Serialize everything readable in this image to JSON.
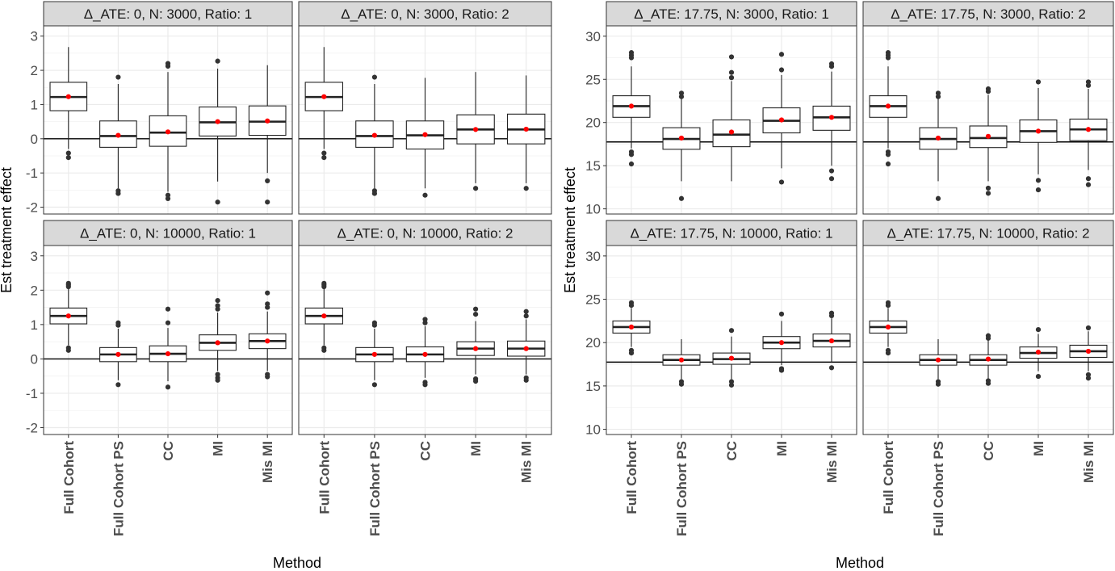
{
  "chart_data": [
    {
      "type": "box",
      "ylabel": "Est treatment effect",
      "xlabel": "Method",
      "categories": [
        "Full Cohort",
        "Full Cohort PS",
        "CC",
        "MI",
        "Mis MI"
      ],
      "ylim": [
        -2.2,
        3.3
      ],
      "yticks": [
        -2,
        -1,
        0,
        1,
        2,
        3
      ],
      "reference_line": 0,
      "grid": true,
      "panels": [
        {
          "strip": "Δ_ATE: 0, N: 3000, Ratio: 1",
          "boxes": [
            {
              "category": "Full Cohort",
              "whisker_low": -0.3,
              "q1": 0.82,
              "median": 1.22,
              "q3": 1.65,
              "whisker_high": 2.68,
              "mean": 1.23,
              "outliers": [
                -0.42,
                -0.55
              ]
            },
            {
              "category": "Full Cohort PS",
              "whisker_low": -1.45,
              "q1": -0.25,
              "median": 0.08,
              "q3": 0.52,
              "whisker_high": 1.6,
              "mean": 0.1,
              "outliers": [
                1.8,
                -1.52,
                -1.6
              ]
            },
            {
              "category": "CC",
              "whisker_low": -1.55,
              "q1": -0.22,
              "median": 0.18,
              "q3": 0.67,
              "whisker_high": 1.95,
              "mean": 0.2,
              "outliers": [
                2.2,
                2.12,
                -1.65,
                -1.75
              ]
            },
            {
              "category": "MI",
              "whisker_low": -1.25,
              "q1": 0.08,
              "median": 0.48,
              "q3": 0.93,
              "whisker_high": 2.05,
              "mean": 0.5,
              "outliers": [
                2.27,
                -1.85
              ]
            },
            {
              "category": "Mis MI",
              "whisker_low": -1.0,
              "q1": 0.1,
              "median": 0.5,
              "q3": 0.96,
              "whisker_high": 2.15,
              "mean": 0.52,
              "outliers": [
                -1.23,
                -1.85
              ]
            }
          ]
        },
        {
          "strip": "Δ_ATE: 0, N: 3000, Ratio: 2",
          "boxes": [
            {
              "category": "Full Cohort",
              "whisker_low": -0.3,
              "q1": 0.82,
              "median": 1.22,
              "q3": 1.65,
              "whisker_high": 2.68,
              "mean": 1.23,
              "outliers": [
                -0.42,
                -0.55
              ]
            },
            {
              "category": "Full Cohort PS",
              "whisker_low": -1.45,
              "q1": -0.25,
              "median": 0.08,
              "q3": 0.52,
              "whisker_high": 1.6,
              "mean": 0.1,
              "outliers": [
                1.8,
                -1.52,
                -1.6
              ]
            },
            {
              "category": "CC",
              "whisker_low": -1.45,
              "q1": -0.3,
              "median": 0.1,
              "q3": 0.52,
              "whisker_high": 1.78,
              "mean": 0.12,
              "outliers": [
                -1.65
              ]
            },
            {
              "category": "MI",
              "whisker_low": -1.3,
              "q1": -0.15,
              "median": 0.27,
              "q3": 0.7,
              "whisker_high": 1.95,
              "mean": 0.27,
              "outliers": [
                -1.45
              ]
            },
            {
              "category": "Mis MI",
              "whisker_low": -1.3,
              "q1": -0.15,
              "median": 0.27,
              "q3": 0.72,
              "whisker_high": 1.85,
              "mean": 0.28,
              "outliers": [
                -1.45
              ]
            }
          ]
        },
        {
          "strip": "Δ_ATE: 0, N: 10000, Ratio: 1",
          "boxes": [
            {
              "category": "Full Cohort",
              "whisker_low": 0.4,
              "q1": 1.02,
              "median": 1.25,
              "q3": 1.48,
              "whisker_high": 2.05,
              "mean": 1.25,
              "outliers": [
                2.2,
                2.15,
                2.1,
                0.32,
                0.25
              ]
            },
            {
              "category": "Full Cohort PS",
              "whisker_low": -0.62,
              "q1": -0.08,
              "median": 0.13,
              "q3": 0.33,
              "whisker_high": 0.88,
              "mean": 0.13,
              "outliers": [
                1.05,
                0.98,
                -0.75
              ]
            },
            {
              "category": "CC",
              "whisker_low": -0.65,
              "q1": -0.08,
              "median": 0.15,
              "q3": 0.38,
              "whisker_high": 0.9,
              "mean": 0.15,
              "outliers": [
                1.45,
                1.05,
                -0.82
              ]
            },
            {
              "category": "MI",
              "whisker_low": -0.35,
              "q1": 0.25,
              "median": 0.47,
              "q3": 0.7,
              "whisker_high": 1.35,
              "mean": 0.47,
              "outliers": [
                1.7,
                1.55,
                1.45,
                -0.45,
                -0.55,
                -0.62
              ]
            },
            {
              "category": "Mis MI",
              "whisker_low": -0.35,
              "q1": 0.3,
              "median": 0.52,
              "q3": 0.73,
              "whisker_high": 1.38,
              "mean": 0.52,
              "outliers": [
                1.92,
                1.6,
                1.5,
                -0.45,
                -0.52
              ]
            }
          ]
        },
        {
          "strip": "Δ_ATE: 0, N: 10000, Ratio: 2",
          "boxes": [
            {
              "category": "Full Cohort",
              "whisker_low": 0.4,
              "q1": 1.02,
              "median": 1.25,
              "q3": 1.48,
              "whisker_high": 2.05,
              "mean": 1.25,
              "outliers": [
                2.2,
                2.15,
                2.1,
                0.32,
                0.25
              ]
            },
            {
              "category": "Full Cohort PS",
              "whisker_low": -0.62,
              "q1": -0.08,
              "median": 0.13,
              "q3": 0.33,
              "whisker_high": 0.88,
              "mean": 0.13,
              "outliers": [
                1.05,
                0.98,
                -0.75
              ]
            },
            {
              "category": "CC",
              "whisker_low": -0.55,
              "q1": -0.08,
              "median": 0.13,
              "q3": 0.35,
              "whisker_high": 0.95,
              "mean": 0.13,
              "outliers": [
                1.15,
                1.05,
                -0.68,
                -0.75
              ]
            },
            {
              "category": "MI",
              "whisker_low": -0.45,
              "q1": 0.1,
              "median": 0.3,
              "q3": 0.5,
              "whisker_high": 1.1,
              "mean": 0.3,
              "outliers": [
                1.45,
                1.3,
                -0.58,
                -0.65
              ]
            },
            {
              "category": "Mis MI",
              "whisker_low": -0.45,
              "q1": 0.08,
              "median": 0.3,
              "q3": 0.52,
              "whisker_high": 1.15,
              "mean": 0.3,
              "outliers": [
                1.38,
                1.25,
                -0.55,
                -0.62
              ]
            }
          ]
        }
      ]
    },
    {
      "type": "box",
      "ylabel": "Est treatment effect",
      "xlabel": "Method",
      "categories": [
        "Full Cohort",
        "Full Cohort PS",
        "CC",
        "MI",
        "Mis MI"
      ],
      "ylim": [
        9.4,
        31.2
      ],
      "yticks": [
        10,
        15,
        20,
        25,
        30
      ],
      "reference_line": 17.75,
      "grid": true,
      "panels": [
        {
          "strip": "Δ_ATE: 17.75, N: 3000, Ratio: 1",
          "boxes": [
            {
              "category": "Full Cohort",
              "whisker_low": 17.0,
              "q1": 20.6,
              "median": 21.9,
              "q3": 23.1,
              "whisker_high": 26.5,
              "mean": 21.9,
              "outliers": [
                28.1,
                27.8,
                27.5,
                16.6,
                16.3,
                15.2
              ]
            },
            {
              "category": "Full Cohort PS",
              "whisker_low": 13.2,
              "q1": 16.9,
              "median": 18.1,
              "q3": 19.4,
              "whisker_high": 22.8,
              "mean": 18.2,
              "outliers": [
                23.4,
                23.0,
                11.2
              ]
            },
            {
              "category": "CC",
              "whisker_low": 13.2,
              "q1": 17.2,
              "median": 18.6,
              "q3": 20.3,
              "whisker_high": 24.8,
              "mean": 18.9,
              "outliers": [
                27.6,
                25.8,
                25.2
              ]
            },
            {
              "category": "MI",
              "whisker_low": 14.7,
              "q1": 18.8,
              "median": 20.2,
              "q3": 21.7,
              "whisker_high": 25.5,
              "mean": 20.3,
              "outliers": [
                27.9,
                26.1,
                13.1
              ]
            },
            {
              "category": "Mis MI",
              "whisker_low": 15.0,
              "q1": 19.1,
              "median": 20.6,
              "q3": 21.9,
              "whisker_high": 25.9,
              "mean": 20.6,
              "outliers": [
                26.8,
                26.5,
                14.4,
                13.5
              ]
            }
          ]
        },
        {
          "strip": "Δ_ATE: 17.75, N: 3000, Ratio: 2",
          "boxes": [
            {
              "category": "Full Cohort",
              "whisker_low": 17.0,
              "q1": 20.6,
              "median": 21.9,
              "q3": 23.1,
              "whisker_high": 26.5,
              "mean": 21.9,
              "outliers": [
                28.1,
                27.8,
                27.5,
                16.6,
                16.3,
                15.2
              ]
            },
            {
              "category": "Full Cohort PS",
              "whisker_low": 13.2,
              "q1": 16.9,
              "median": 18.1,
              "q3": 19.4,
              "whisker_high": 22.8,
              "mean": 18.2,
              "outliers": [
                23.4,
                23.0,
                11.2
              ]
            },
            {
              "category": "CC",
              "whisker_low": 13.2,
              "q1": 17.1,
              "median": 18.2,
              "q3": 19.6,
              "whisker_high": 23.2,
              "mean": 18.4,
              "outliers": [
                23.9,
                23.6,
                12.4,
                11.8
              ]
            },
            {
              "category": "MI",
              "whisker_low": 14.0,
              "q1": 17.7,
              "median": 19.0,
              "q3": 20.3,
              "whisker_high": 24.0,
              "mean": 19.0,
              "outliers": [
                24.7,
                13.3,
                12.2
              ]
            },
            {
              "category": "Mis MI",
              "whisker_low": 14.5,
              "q1": 17.9,
              "median": 19.2,
              "q3": 20.4,
              "whisker_high": 23.9,
              "mean": 19.2,
              "outliers": [
                24.7,
                24.3,
                13.5,
                12.8
              ]
            }
          ]
        },
        {
          "strip": "Δ_ATE: 17.75, N: 10000, Ratio: 1",
          "boxes": [
            {
              "category": "Full Cohort",
              "whisker_low": 19.5,
              "q1": 21.1,
              "median": 21.8,
              "q3": 22.5,
              "whisker_high": 24.0,
              "mean": 21.8,
              "outliers": [
                24.6,
                24.3,
                19.1,
                18.8
              ]
            },
            {
              "category": "Full Cohort PS",
              "whisker_low": 15.8,
              "q1": 17.4,
              "median": 18.0,
              "q3": 18.6,
              "whisker_high": 20.4,
              "mean": 18.0,
              "outliers": [
                15.5,
                15.2
              ]
            },
            {
              "category": "CC",
              "whisker_low": 15.8,
              "q1": 17.5,
              "median": 18.1,
              "q3": 18.8,
              "whisker_high": 20.7,
              "mean": 18.2,
              "outliers": [
                21.4,
                15.5,
                15.1
              ]
            },
            {
              "category": "MI",
              "whisker_low": 17.4,
              "q1": 19.3,
              "median": 20.0,
              "q3": 20.7,
              "whisker_high": 22.5,
              "mean": 20.0,
              "outliers": [
                23.3,
                17.0,
                16.8
              ]
            },
            {
              "category": "Mis MI",
              "whisker_low": 17.7,
              "q1": 19.5,
              "median": 20.2,
              "q3": 21.0,
              "whisker_high": 22.8,
              "mean": 20.2,
              "outliers": [
                23.4,
                23.1,
                17.1
              ]
            }
          ]
        },
        {
          "strip": "Δ_ATE: 17.75, N: 10000, Ratio: 2",
          "boxes": [
            {
              "category": "Full Cohort",
              "whisker_low": 19.5,
              "q1": 21.1,
              "median": 21.8,
              "q3": 22.5,
              "whisker_high": 24.0,
              "mean": 21.8,
              "outliers": [
                24.6,
                24.3,
                19.1,
                18.8
              ]
            },
            {
              "category": "Full Cohort PS",
              "whisker_low": 15.8,
              "q1": 17.4,
              "median": 18.0,
              "q3": 18.6,
              "whisker_high": 20.4,
              "mean": 18.0,
              "outliers": [
                15.5,
                15.2
              ]
            },
            {
              "category": "CC",
              "whisker_low": 15.8,
              "q1": 17.4,
              "median": 18.0,
              "q3": 18.6,
              "whisker_high": 20.3,
              "mean": 18.1,
              "outliers": [
                20.8,
                20.5,
                15.6,
                15.3
              ]
            },
            {
              "category": "MI",
              "whisker_low": 16.7,
              "q1": 18.2,
              "median": 18.8,
              "q3": 19.5,
              "whisker_high": 21.0,
              "mean": 18.9,
              "outliers": [
                21.5,
                16.1
              ]
            },
            {
              "category": "Mis MI",
              "whisker_low": 16.7,
              "q1": 18.3,
              "median": 19.0,
              "q3": 19.7,
              "whisker_high": 21.3,
              "mean": 19.0,
              "outliers": [
                21.7,
                16.3,
                15.9
              ]
            }
          ]
        }
      ]
    }
  ],
  "colors": {
    "strip_fill": "#d9d9d9",
    "panel_border": "#333333",
    "grid_major": "#ebebeb",
    "box_stroke": "#222222",
    "outlier": "#333333",
    "mean_point": "#ff0000",
    "tick_text": "#4d4d4d",
    "axis_title": "#000000"
  }
}
